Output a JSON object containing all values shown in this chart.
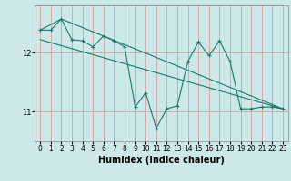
{
  "xlabel": "Humidex (Indice chaleur)",
  "bg_color": "#cce8e8",
  "grid_color_v": "#d4a0a0",
  "grid_color_h": "#d4a0a0",
  "line_color": "#1a7a6a",
  "xlim": [
    -0.5,
    23.5
  ],
  "ylim": [
    10.5,
    12.8
  ],
  "yticks": [
    11,
    12
  ],
  "xticks": [
    0,
    1,
    2,
    3,
    4,
    5,
    6,
    7,
    8,
    9,
    10,
    11,
    12,
    13,
    14,
    15,
    16,
    17,
    18,
    19,
    20,
    21,
    22,
    23
  ],
  "series1_x": [
    0,
    1,
    2,
    3,
    4,
    5,
    6,
    7,
    8,
    9,
    10,
    11,
    12,
    13,
    14,
    15,
    16,
    17,
    18,
    19,
    20,
    21,
    22,
    23
  ],
  "series1_y": [
    12.38,
    12.38,
    12.57,
    12.22,
    12.2,
    12.1,
    12.28,
    12.2,
    12.1,
    11.08,
    11.32,
    10.72,
    11.05,
    11.1,
    11.85,
    12.18,
    11.95,
    12.2,
    11.85,
    11.05,
    11.05,
    11.08,
    11.08,
    11.05
  ],
  "series2_x": [
    0,
    2,
    23
  ],
  "series2_y": [
    12.38,
    12.57,
    11.05
  ],
  "series3_x": [
    0,
    23
  ],
  "series3_y": [
    12.22,
    11.05
  ],
  "marker_size": 3,
  "line_width": 0.8,
  "xlabel_fontsize": 7,
  "tick_fontsize": 5.5
}
